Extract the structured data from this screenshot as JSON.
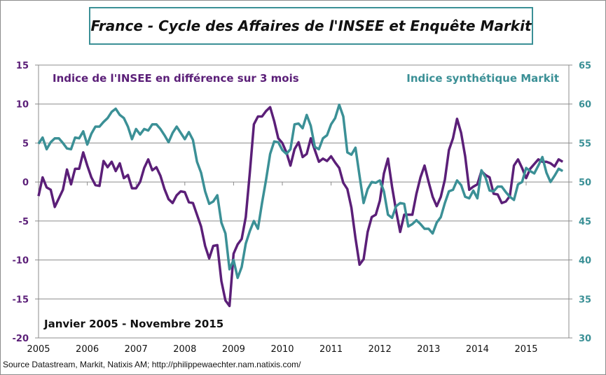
{
  "chart_data": {
    "type": "line",
    "title": "France - Cycle des Affaires de l'INSEE et Enquête Markit",
    "period_label": "Janvier 2005 - Novembre 2015",
    "source": "Source Datastream, Markit, Natixis AM;  http://philippewaechter.nam.natixis.com/",
    "x_start": "2005-01",
    "x_end": "2015-11",
    "x_frequency": "monthly",
    "x_tick_labels": [
      "2005",
      "2006",
      "2007",
      "2008",
      "2009",
      "2010",
      "2011",
      "2012",
      "2013",
      "2014",
      "2015"
    ],
    "left_axis": {
      "ylim": [
        -20,
        15
      ],
      "ticks": [
        15,
        10,
        5,
        0,
        -5,
        -10,
        -15,
        -20
      ],
      "color": "#5b1f78"
    },
    "right_axis": {
      "ylim": [
        30,
        65
      ],
      "ticks": [
        65,
        60,
        55,
        50,
        45,
        40,
        35,
        30
      ],
      "color": "#3b9096"
    },
    "grid": true,
    "series": [
      {
        "name": "Indice de l'INSEE en différence sur 3 mois",
        "axis": "left",
        "color": "#5b1f78",
        "values": [
          -1.8,
          0.6,
          -0.7,
          -1.0,
          -3.2,
          -2.1,
          -1.0,
          1.6,
          -0.3,
          1.7,
          1.7,
          3.8,
          2.1,
          0.6,
          -0.4,
          -0.5,
          2.7,
          1.9,
          2.6,
          1.4,
          2.4,
          0.5,
          0.9,
          -0.8,
          -0.8,
          0,
          1.8,
          2.9,
          1.5,
          1.9,
          0.8,
          -0.9,
          -2.2,
          -2.7,
          -1.7,
          -1.2,
          -1.3,
          -2.6,
          -2.7,
          -4.2,
          -5.7,
          -8.2,
          -9.8,
          -8.2,
          -8.1,
          -12.7,
          -15.2,
          -15.9,
          -9.2,
          -8.0,
          -7.3,
          -4.5,
          1.2,
          7.4,
          8.4,
          8.4,
          9.1,
          9.6,
          7.8,
          5.6,
          5.0,
          3.8,
          2.1,
          4.2,
          5.1,
          3.2,
          3.6,
          5.6,
          4.1,
          2.6,
          3.0,
          2.7,
          3.3,
          2.5,
          1.8,
          -0.1,
          -0.9,
          -3.3,
          -7.2,
          -10.6,
          -9.9,
          -6.4,
          -4.5,
          -4.2,
          -2.4,
          1.1,
          3.0,
          -0.6,
          -3.7,
          -6.4,
          -4.2,
          -4.2,
          -4.2,
          -1.5,
          0.6,
          2.1,
          0.0,
          -1.9,
          -3.1,
          -1.9,
          0.3,
          4.1,
          5.6,
          8.1,
          6.3,
          3.3,
          -1.0,
          -0.6,
          -0.3,
          1.4,
          0.9,
          0.6,
          -1.5,
          -1.6,
          -2.7,
          -2.5,
          -1.8,
          2.1,
          2.9,
          1.8,
          0.5,
          1.7,
          2.3,
          2.9,
          2.6,
          2.6,
          2.4,
          2.0,
          2.9,
          2.6
        ]
      },
      {
        "name": "Indice synthétique Markit",
        "axis": "right",
        "color": "#3b9096",
        "values": [
          54.9,
          55.7,
          54.2,
          55.1,
          55.6,
          55.6,
          55.0,
          54.3,
          54.2,
          55.7,
          55.6,
          56.5,
          54.8,
          56.2,
          57.1,
          57.1,
          57.7,
          58.2,
          59.0,
          59.4,
          58.6,
          58.2,
          57.1,
          55.5,
          56.8,
          56.1,
          56.8,
          56.6,
          57.4,
          57.4,
          56.8,
          56.0,
          55.1,
          56.3,
          57.1,
          56.3,
          55.5,
          56.4,
          55.4,
          52.6,
          51.2,
          48.8,
          47.2,
          47.5,
          48.3,
          44.8,
          43.4,
          38.8,
          40.0,
          37.7,
          39.1,
          42.1,
          43.7,
          45.0,
          44.0,
          47.3,
          50.3,
          53.6,
          55.2,
          55.1,
          54.1,
          53.6,
          54.2,
          57.4,
          57.5,
          56.9,
          58.6,
          57.2,
          54.5,
          54.2,
          55.6,
          56.0,
          57.4,
          58.2,
          59.9,
          58.4,
          53.8,
          53.5,
          54.4,
          50.8,
          47.3,
          49.1,
          50.0,
          49.9,
          50.2,
          48.8,
          45.8,
          45.4,
          46.9,
          47.3,
          47.2,
          44.3,
          44.6,
          45.1,
          44.6,
          44.0,
          44.0,
          43.4,
          44.8,
          45.5,
          47.3,
          48.8,
          49.0,
          50.2,
          49.6,
          48.1,
          47.9,
          48.9,
          47.9,
          51.5,
          50.6,
          48.9,
          48.8,
          49.4,
          49.4,
          48.7,
          48.1,
          47.7,
          49.7,
          50.0,
          51.8,
          51.4,
          51.1,
          52.1,
          53.2,
          51.2,
          50.0,
          50.8,
          51.7,
          51.4
        ]
      }
    ]
  }
}
